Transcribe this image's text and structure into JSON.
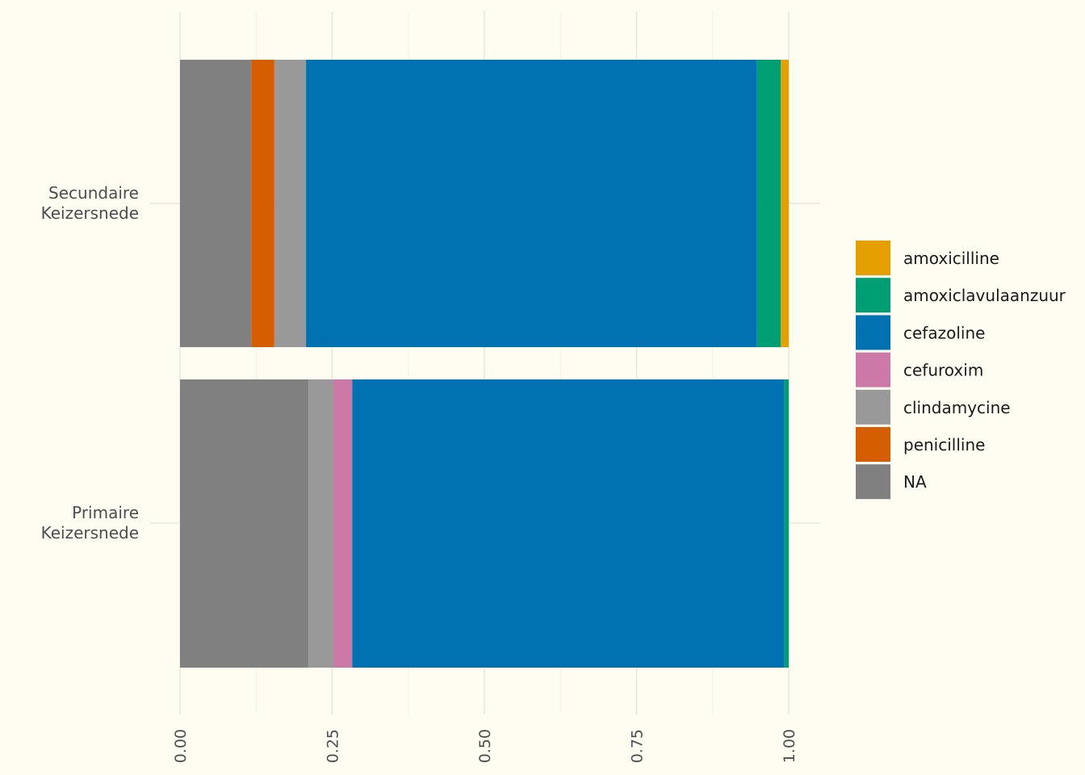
{
  "chart_data": {
    "type": "bar",
    "orientation": "horizontal",
    "stacked": true,
    "title": "",
    "xlabel": "",
    "ylabel": "",
    "xlim": [
      0,
      1
    ],
    "x_ticks": [
      "0.00",
      "0.25",
      "0.50",
      "0.75",
      "1.00"
    ],
    "x_tick_values": [
      0,
      0.25,
      0.5,
      0.75,
      1.0
    ],
    "grid": true,
    "legend_position": "right",
    "categories": [
      [
        "Secundaire",
        "Keizersnede"
      ],
      [
        "Primaire",
        "Keizersnede"
      ]
    ],
    "series": [
      {
        "name": "NA",
        "color": "#808080",
        "values": [
          0.117,
          0.211
        ]
      },
      {
        "name": "penicilline",
        "color": "#D55E00",
        "values": [
          0.038,
          0.0
        ]
      },
      {
        "name": "clindamycine",
        "color": "#999999",
        "values": [
          0.052,
          0.041
        ]
      },
      {
        "name": "cefuroxim",
        "color": "#CC79A7",
        "values": [
          0.0,
          0.031
        ]
      },
      {
        "name": "cefazoline",
        "color": "#0072B2",
        "values": [
          0.741,
          0.71
        ]
      },
      {
        "name": "amoxiclavulaanzuur",
        "color": "#009E73",
        "values": [
          0.039,
          0.007
        ]
      },
      {
        "name": "amoxicilline",
        "color": "#E69F00",
        "values": [
          0.013,
          0.0
        ]
      }
    ],
    "legend_order": [
      "amoxicilline",
      "amoxiclavulaanzuur",
      "cefazoline",
      "cefuroxim",
      "clindamycine",
      "penicilline",
      "NA"
    ]
  },
  "colors": {
    "background": "#FFFDF2",
    "grid_major": "#E6E6DC",
    "grid_minor": "#F0F0E6",
    "text": "#4d4d4d"
  }
}
